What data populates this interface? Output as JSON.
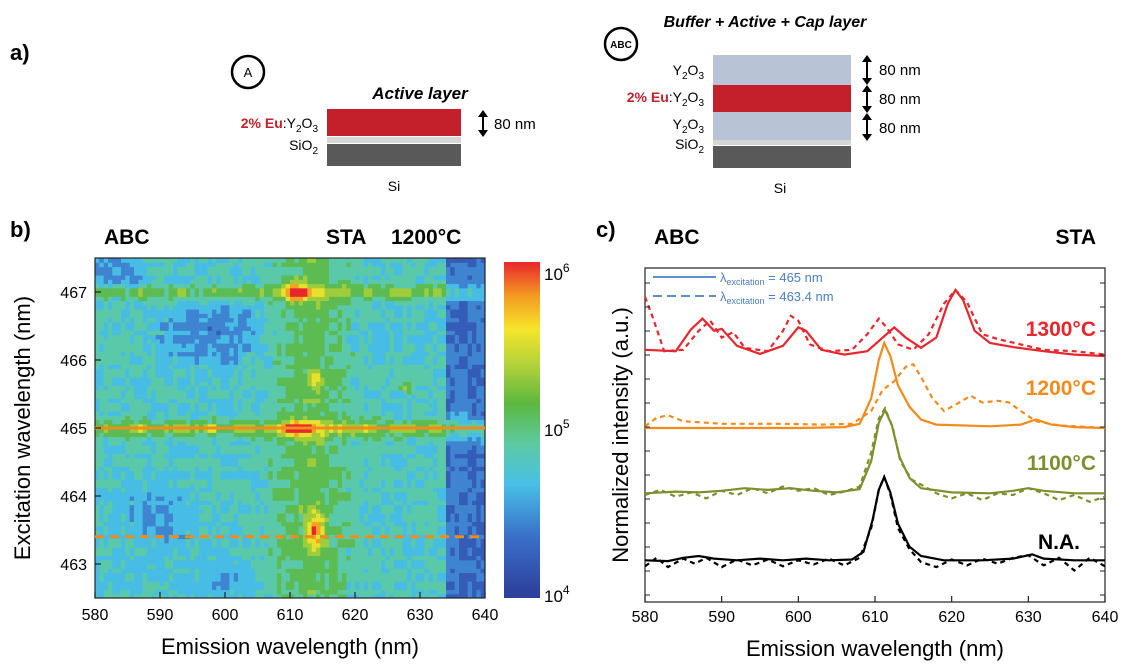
{
  "panel_a": {
    "label": "a)",
    "structure_A": {
      "badge": "A",
      "title": "Active layer",
      "layers": [
        {
          "label_dopant": "2% Eu",
          "label_sep": ":",
          "label_main": "Y",
          "label_sub": "2",
          "label_main2": "O",
          "label_sub2": "3",
          "thickness": "80 nm",
          "color": "#c4202b"
        },
        {
          "label_main": "SiO",
          "label_sub": "2",
          "color": "#d6d6d6"
        },
        {
          "label_main": "Si",
          "color": "#595959"
        }
      ]
    },
    "structure_ABC": {
      "badge": "ABC",
      "title": "Buffer + Active + Cap layer",
      "layers": [
        {
          "label_main": "Y",
          "label_sub": "2",
          "label_main2": "O",
          "label_sub2": "3",
          "thickness": "80 nm",
          "color": "#b8c3d5"
        },
        {
          "label_dopant": "2% Eu",
          "label_sep": ":",
          "label_main": "Y",
          "label_sub": "2",
          "label_main2": "O",
          "label_sub2": "3",
          "thickness": "80 nm",
          "color": "#c4202b"
        },
        {
          "label_main": "Y",
          "label_sub": "2",
          "label_main2": "O",
          "label_sub2": "3",
          "thickness": "80 nm",
          "color": "#b8c3d5"
        },
        {
          "label_main": "SiO",
          "label_sub": "2",
          "color": "#d6d6d6"
        },
        {
          "label_main": "Si",
          "color": "#595959"
        }
      ]
    }
  },
  "panel_b": {
    "label": "b)",
    "title_left": "ABC",
    "title_mid": "STA",
    "title_right": "1200°C",
    "colorbar": {
      "scale": "log",
      "min": 10000,
      "max": 1000000,
      "ticks": [
        {
          "base": "10",
          "exp": "4"
        },
        {
          "base": "10",
          "exp": "5"
        },
        {
          "base": "10",
          "exp": "6"
        }
      ]
    }
  },
  "panel_c": {
    "label": "c)",
    "title_left": "ABC",
    "title_right": "STA",
    "legend": [
      {
        "symbol": "λ",
        "sub": "excitation",
        "text": " = 465 nm",
        "style": "solid"
      },
      {
        "symbol": "λ",
        "sub": "excitation",
        "text": " = 463.4 nm",
        "style": "dashed"
      }
    ],
    "legend_color": "#4a7fc1"
  },
  "chart_data": [
    {
      "type": "heatmap",
      "panel": "b",
      "xlabel": "Emission  wavelength (nm)",
      "ylabel": "Excitation  wavelength (nm)",
      "xlim": [
        580,
        640
      ],
      "ylim": [
        462.5,
        467.5
      ],
      "xticks": [
        580,
        590,
        600,
        610,
        620,
        630,
        640
      ],
      "yticks": [
        463,
        464,
        465,
        466,
        467
      ],
      "color_scale": "log",
      "color_range": [
        10000,
        1000000
      ],
      "reference_lines": [
        {
          "y": 465.0,
          "style": "solid",
          "color": "#f28a1c"
        },
        {
          "y": 463.4,
          "style": "dashed",
          "color": "#f28a1c"
        }
      ],
      "hotspots": [
        {
          "x": 611,
          "y": 467.0,
          "level": "max"
        },
        {
          "x": 611,
          "y": 465.0,
          "level": "max"
        },
        {
          "x": 614,
          "y": 463.5,
          "level": "high"
        },
        {
          "x": 614,
          "y": 465.7,
          "level": "medium"
        },
        {
          "x": 628,
          "y": 465.6,
          "level": "medium"
        }
      ]
    },
    {
      "type": "line",
      "panel": "c",
      "xlabel": "Emission wavelength (nm)",
      "ylabel": "Normalized intensity (a.u.)",
      "xlim": [
        580,
        640
      ],
      "xticks": [
        580,
        590,
        600,
        610,
        620,
        630,
        640
      ],
      "series": [
        {
          "name": "1300°C",
          "color": "#e8262d",
          "offset": 3.2,
          "solid": [
            [
              580,
              0.12
            ],
            [
              584,
              0.1
            ],
            [
              586,
              0.42
            ],
            [
              587.5,
              0.58
            ],
            [
              589,
              0.4
            ],
            [
              590,
              0.43
            ],
            [
              592,
              0.18
            ],
            [
              595,
              0.06
            ],
            [
              598,
              0.18
            ],
            [
              600,
              0.45
            ],
            [
              601,
              0.4
            ],
            [
              603,
              0.12
            ],
            [
              606,
              0.05
            ],
            [
              609,
              0.1
            ],
            [
              611,
              0.3
            ],
            [
              612.5,
              0.45
            ],
            [
              614,
              0.3
            ],
            [
              616,
              0.15
            ],
            [
              618,
              0.3
            ],
            [
              619.5,
              0.8
            ],
            [
              620.5,
              1.0
            ],
            [
              621.5,
              0.85
            ],
            [
              623,
              0.4
            ],
            [
              625,
              0.22
            ],
            [
              628,
              0.16
            ],
            [
              632,
              0.1
            ],
            [
              636,
              0.05
            ],
            [
              640,
              0.03
            ]
          ],
          "dashed": [
            [
              580,
              0.9
            ],
            [
              581,
              0.6
            ],
            [
              582.5,
              0.1
            ],
            [
              585,
              0.12
            ],
            [
              587,
              0.4
            ],
            [
              588.5,
              0.55
            ],
            [
              590,
              0.3
            ],
            [
              591.5,
              0.38
            ],
            [
              593,
              0.15
            ],
            [
              596,
              0.1
            ],
            [
              598,
              0.4
            ],
            [
              599,
              0.62
            ],
            [
              600,
              0.55
            ],
            [
              601.5,
              0.2
            ],
            [
              604,
              0.1
            ],
            [
              607,
              0.12
            ],
            [
              609,
              0.35
            ],
            [
              610.5,
              0.58
            ],
            [
              611.5,
              0.45
            ],
            [
              613,
              0.2
            ],
            [
              615,
              0.12
            ],
            [
              617,
              0.35
            ],
            [
              619,
              0.8
            ],
            [
              620.5,
              1.0
            ],
            [
              622,
              0.82
            ],
            [
              624,
              0.35
            ],
            [
              626,
              0.28
            ],
            [
              629,
              0.2
            ],
            [
              632,
              0.12
            ],
            [
              636,
              0.1
            ],
            [
              640,
              0.05
            ]
          ]
        },
        {
          "name": "1200°C",
          "color": "#f28a1c",
          "offset": 2.0,
          "solid": [
            [
              580,
              0.0
            ],
            [
              590,
              0.0
            ],
            [
              600,
              0.0
            ],
            [
              606,
              0.01
            ],
            [
              608,
              0.05
            ],
            [
              609.5,
              0.35
            ],
            [
              610.5,
              0.8
            ],
            [
              611.2,
              1.0
            ],
            [
              612,
              0.85
            ],
            [
              613,
              0.5
            ],
            [
              614.5,
              0.25
            ],
            [
              616,
              0.1
            ],
            [
              618,
              0.04
            ],
            [
              625,
              0.02
            ],
            [
              629,
              0.04
            ],
            [
              631,
              0.1
            ],
            [
              633,
              0.04
            ],
            [
              636,
              0.01
            ],
            [
              640,
              0.0
            ]
          ],
          "dashed": [
            [
              580,
              0.02
            ],
            [
              581.5,
              0.12
            ],
            [
              583,
              0.15
            ],
            [
              585,
              0.08
            ],
            [
              590,
              0.05
            ],
            [
              598,
              0.05
            ],
            [
              603,
              0.04
            ],
            [
              607,
              0.05
            ],
            [
              609.5,
              0.2
            ],
            [
              611,
              0.45
            ],
            [
              612.5,
              0.55
            ],
            [
              614,
              0.72
            ],
            [
              615,
              0.75
            ],
            [
              616,
              0.6
            ],
            [
              617.5,
              0.35
            ],
            [
              619,
              0.2
            ],
            [
              621,
              0.3
            ],
            [
              622.5,
              0.38
            ],
            [
              624,
              0.3
            ],
            [
              626,
              0.32
            ],
            [
              627.5,
              0.3
            ],
            [
              629,
              0.2
            ],
            [
              631,
              0.08
            ],
            [
              634,
              0.03
            ],
            [
              640,
              0.0
            ]
          ]
        },
        {
          "name": "1100°C",
          "color": "#7f8e2f",
          "offset": 1.0,
          "solid": [
            [
              580,
              0.02
            ],
            [
              584,
              0.04
            ],
            [
              587,
              0.03
            ],
            [
              590,
              0.05
            ],
            [
              593,
              0.08
            ],
            [
              596,
              0.06
            ],
            [
              599,
              0.08
            ],
            [
              602,
              0.05
            ],
            [
              605,
              0.03
            ],
            [
              608,
              0.07
            ],
            [
              609.5,
              0.4
            ],
            [
              610.5,
              0.85
            ],
            [
              611.3,
              1.0
            ],
            [
              612.2,
              0.82
            ],
            [
              613.2,
              0.45
            ],
            [
              614.5,
              0.2
            ],
            [
              616,
              0.08
            ],
            [
              620,
              0.03
            ],
            [
              625,
              0.02
            ],
            [
              628,
              0.05
            ],
            [
              630,
              0.08
            ],
            [
              632,
              0.05
            ],
            [
              636,
              0.02
            ],
            [
              640,
              0.02
            ]
          ],
          "dashed": [
            [
              580,
              0.0
            ],
            [
              582,
              0.06
            ],
            [
              584,
              -0.02
            ],
            [
              586,
              0.03
            ],
            [
              588,
              -0.04
            ],
            [
              590,
              0.05
            ],
            [
              592,
              0.0
            ],
            [
              594,
              0.08
            ],
            [
              596,
              0.02
            ],
            [
              598,
              0.1
            ],
            [
              600,
              0.05
            ],
            [
              602,
              0.08
            ],
            [
              604,
              0.0
            ],
            [
              606,
              0.04
            ],
            [
              608,
              0.1
            ],
            [
              609.5,
              0.5
            ],
            [
              610.5,
              0.9
            ],
            [
              611.3,
              1.02
            ],
            [
              612.3,
              0.8
            ],
            [
              613.3,
              0.4
            ],
            [
              614.8,
              0.18
            ],
            [
              616.5,
              0.1
            ],
            [
              618,
              0.02
            ],
            [
              620,
              -0.04
            ],
            [
              622,
              0.02
            ],
            [
              624,
              -0.06
            ],
            [
              626,
              0.02
            ],
            [
              628,
              0.0
            ],
            [
              630,
              0.08
            ],
            [
              632,
              0.02
            ],
            [
              634,
              -0.06
            ],
            [
              636,
              0.0
            ],
            [
              638,
              -0.08
            ],
            [
              640,
              -0.02
            ]
          ]
        },
        {
          "name": "N.A.",
          "color": "#000000",
          "offset": 0.0,
          "solid": [
            [
              580,
              0.02
            ],
            [
              583,
              0.01
            ],
            [
              585,
              0.05
            ],
            [
              587,
              0.07
            ],
            [
              589,
              0.04
            ],
            [
              592,
              0.02
            ],
            [
              595,
              0.04
            ],
            [
              598,
              0.02
            ],
            [
              601,
              0.04
            ],
            [
              604,
              0.02
            ],
            [
              607,
              0.03
            ],
            [
              608.5,
              0.12
            ],
            [
              609.7,
              0.5
            ],
            [
              610.5,
              0.85
            ],
            [
              611.2,
              1.0
            ],
            [
              612,
              0.82
            ],
            [
              613,
              0.45
            ],
            [
              614.5,
              0.18
            ],
            [
              616,
              0.07
            ],
            [
              619,
              0.02
            ],
            [
              624,
              0.02
            ],
            [
              628,
              0.04
            ],
            [
              630.5,
              0.09
            ],
            [
              632,
              0.04
            ],
            [
              636,
              0.02
            ],
            [
              640,
              0.02
            ]
          ],
          "dashed": [
            [
              580,
              -0.05
            ],
            [
              581.5,
              0.05
            ],
            [
              583,
              -0.06
            ],
            [
              585,
              0.04
            ],
            [
              586.5,
              -0.02
            ],
            [
              588,
              0.05
            ],
            [
              590,
              -0.06
            ],
            [
              592,
              0.03
            ],
            [
              594,
              -0.04
            ],
            [
              596,
              0.03
            ],
            [
              598,
              -0.05
            ],
            [
              600,
              0.02
            ],
            [
              602,
              -0.03
            ],
            [
              604,
              0.04
            ],
            [
              606,
              -0.04
            ],
            [
              608,
              0.05
            ],
            [
              609.5,
              0.4
            ],
            [
              610.5,
              0.85
            ],
            [
              611.2,
              1.0
            ],
            [
              612,
              0.8
            ],
            [
              613,
              0.4
            ],
            [
              614.5,
              0.15
            ],
            [
              616,
              0.0
            ],
            [
              618,
              -0.06
            ],
            [
              620,
              0.03
            ],
            [
              622,
              -0.04
            ],
            [
              624,
              0.04
            ],
            [
              626,
              -0.02
            ],
            [
              628,
              0.05
            ],
            [
              630,
              0.08
            ],
            [
              632,
              -0.04
            ],
            [
              634,
              0.05
            ],
            [
              636,
              -0.1
            ],
            [
              638,
              0.05
            ],
            [
              640,
              -0.05
            ]
          ]
        }
      ]
    }
  ]
}
